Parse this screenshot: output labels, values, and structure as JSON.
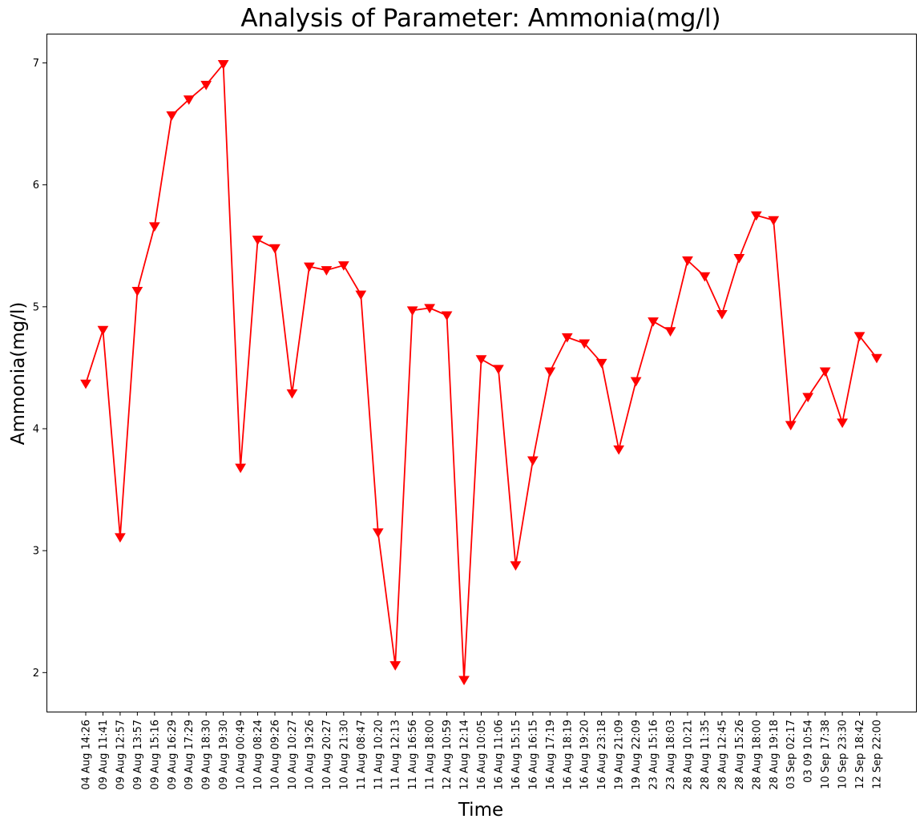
{
  "chart_data": {
    "type": "line",
    "title": "Analysis of Parameter: Ammonia(mg/l)",
    "xlabel": "Time",
    "ylabel": "Ammonia(mg/l)",
    "ylim": [
      1.68,
      7.24
    ],
    "yticks": [
      2,
      3,
      4,
      5,
      6,
      7
    ],
    "grid": false,
    "legend": "none",
    "series": [
      {
        "color": "#ff0000",
        "marker": "triangle-down",
        "values": [
          4.37,
          4.81,
          3.11,
          5.13,
          5.66,
          6.57,
          6.7,
          6.82,
          6.99,
          3.68,
          5.55,
          5.48,
          4.29,
          5.33,
          5.3,
          5.34,
          5.1,
          3.15,
          2.06,
          4.97,
          4.99,
          4.93,
          1.94,
          4.57,
          4.49,
          2.88,
          3.74,
          4.47,
          4.75,
          4.7,
          4.54,
          3.83,
          4.39,
          4.88,
          4.8,
          5.38,
          5.25,
          4.94,
          5.4,
          5.75,
          5.71,
          4.03,
          4.26,
          4.47,
          4.05,
          4.76,
          4.58
        ]
      }
    ],
    "x": [
      "04 Aug 14:26",
      "09 Aug 11:41",
      "09 Aug 12:57",
      "09 Aug 13:57",
      "09 Aug 15:16",
      "09 Aug 16:29",
      "09 Aug 17:29",
      "09 Aug 18:30",
      "09 Aug 19:30",
      "10 Aug 00:49",
      "10 Aug 08:24",
      "10 Aug 09:26",
      "10 Aug 10:27",
      "10 Aug 19:26",
      "10 Aug 20:27",
      "10 Aug 21:30",
      "11 Aug 08:47",
      "11 Aug 10:20",
      "11 Aug 12:13",
      "11 Aug 16:56",
      "11 Aug 18:00",
      "12 Aug 10:59",
      "12 Aug 12:14",
      "16 Aug 10:05",
      "16 Aug 11:06",
      "16 Aug 15:15",
      "16 Aug 16:15",
      "16 Aug 17:19",
      "16 Aug 18:19",
      "16 Aug 19:20",
      "16 Aug 23:18",
      "19 Aug 21:09",
      "19 Aug 22:09",
      "23 Aug 15:16",
      "23 Aug 18:03",
      "28 Aug 10:21",
      "28 Aug 11:35",
      "28 Aug 12:45",
      "28 Aug 15:26",
      "28 Aug 18:00",
      "28 Aug 19:18",
      "03 Sep 02:17",
      "03 09 10:54",
      "10 Sep 17:38",
      "10 Sep 23:30",
      "12 Sep 18:42",
      "12 Sep 22:00"
    ]
  }
}
